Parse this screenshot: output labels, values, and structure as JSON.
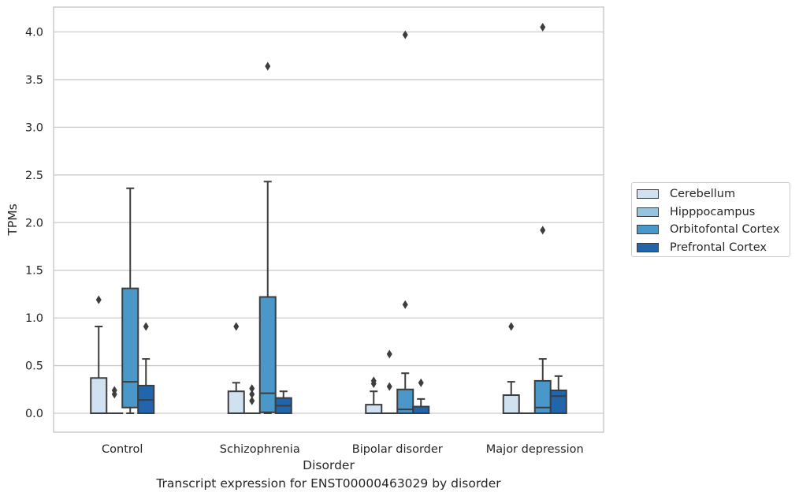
{
  "caption": "Transcript expression for ENST00000463029 by disorder",
  "chart_data": {
    "type": "box",
    "xlabel": "Disorder",
    "ylabel": "TPMs",
    "ylim": [
      -0.2,
      4.25
    ],
    "yticks": [
      "0.0",
      "0.5",
      "1.0",
      "1.5",
      "2.0",
      "2.5",
      "3.0",
      "3.5",
      "4.0"
    ],
    "categories": [
      "Control",
      "Schizophrenia",
      "Bipolar disorder",
      "Major depression"
    ],
    "grid": "horizontal",
    "legend_position": "right",
    "series": [
      {
        "name": "Cerebellum",
        "color": "#d0e1f2",
        "boxes": [
          {
            "q1": 0.0,
            "median": 0.0,
            "q3": 0.37,
            "whisker_low": 0.0,
            "whisker_high": 0.91,
            "outliers": [
              1.19
            ]
          },
          {
            "q1": 0.0,
            "median": 0.0,
            "q3": 0.23,
            "whisker_low": 0.0,
            "whisker_high": 0.32,
            "outliers": [
              0.91
            ]
          },
          {
            "q1": 0.0,
            "median": 0.0,
            "q3": 0.09,
            "whisker_low": 0.0,
            "whisker_high": 0.23,
            "outliers": [
              0.31,
              0.34
            ]
          },
          {
            "q1": 0.0,
            "median": 0.0,
            "q3": 0.19,
            "whisker_low": 0.0,
            "whisker_high": 0.33,
            "outliers": [
              0.91
            ]
          }
        ]
      },
      {
        "name": "Hipppocampus",
        "color": "#94c4df",
        "boxes": [
          {
            "q1": 0.0,
            "median": 0.0,
            "q3": 0.0,
            "whisker_low": 0.0,
            "whisker_high": 0.0,
            "outliers": [
              0.2,
              0.24
            ]
          },
          {
            "q1": 0.0,
            "median": 0.0,
            "q3": 0.0,
            "whisker_low": 0.0,
            "whisker_high": 0.0,
            "outliers": [
              0.13,
              0.2,
              0.26
            ]
          },
          {
            "q1": 0.0,
            "median": 0.0,
            "q3": 0.0,
            "whisker_low": 0.0,
            "whisker_high": 0.0,
            "outliers": [
              0.28,
              0.62
            ]
          },
          {
            "q1": 0.0,
            "median": 0.0,
            "q3": 0.0,
            "whisker_low": 0.0,
            "whisker_high": 0.0,
            "outliers": []
          }
        ]
      },
      {
        "name": "Orbitofontal Cortex",
        "color": "#4a98c9",
        "boxes": [
          {
            "q1": 0.06,
            "median": 0.33,
            "q3": 1.31,
            "whisker_low": 0.0,
            "whisker_high": 2.36,
            "outliers": []
          },
          {
            "q1": 0.01,
            "median": 0.21,
            "q3": 1.22,
            "whisker_low": 0.0,
            "whisker_high": 2.43,
            "outliers": [
              3.64
            ]
          },
          {
            "q1": 0.0,
            "median": 0.04,
            "q3": 0.25,
            "whisker_low": 0.0,
            "whisker_high": 0.42,
            "outliers": [
              1.14,
              3.97
            ]
          },
          {
            "q1": 0.0,
            "median": 0.06,
            "q3": 0.34,
            "whisker_low": 0.0,
            "whisker_high": 0.57,
            "outliers": [
              1.92,
              4.05
            ]
          }
        ]
      },
      {
        "name": "Prefrontal Cortex",
        "color": "#2166ac",
        "boxes": [
          {
            "q1": 0.0,
            "median": 0.14,
            "q3": 0.29,
            "whisker_low": 0.0,
            "whisker_high": 0.57,
            "outliers": [
              0.91
            ]
          },
          {
            "q1": 0.0,
            "median": 0.08,
            "q3": 0.16,
            "whisker_low": 0.0,
            "whisker_high": 0.23,
            "outliers": []
          },
          {
            "q1": 0.0,
            "median": 0.0,
            "q3": 0.07,
            "whisker_low": 0.0,
            "whisker_high": 0.15,
            "outliers": [
              0.32
            ]
          },
          {
            "q1": 0.0,
            "median": 0.18,
            "q3": 0.24,
            "whisker_low": 0.0,
            "whisker_high": 0.39,
            "outliers": []
          }
        ]
      }
    ]
  }
}
